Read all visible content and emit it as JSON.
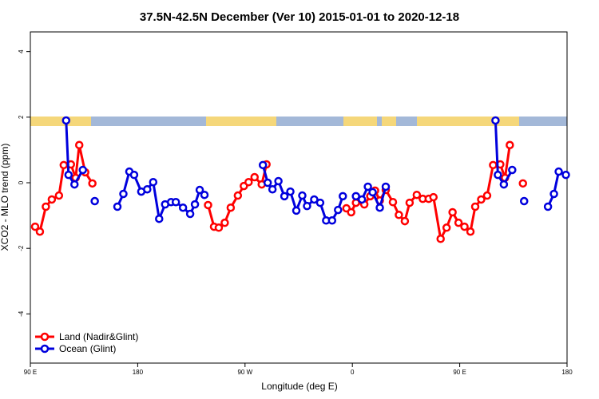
{
  "chart_data": {
    "type": "line",
    "title": "37.5N-42.5N December (Ver 10)   2015-01-01 to 2020-12-18",
    "xlabel": "Longitude (deg E)",
    "ylabel": "XCO2 - MLO trend (ppm)",
    "xlim": [
      90,
      540
    ],
    "ylim": [
      -5.5,
      4.6
    ],
    "xticks": [
      {
        "value": 90,
        "label": "90 E"
      },
      180,
      {
        "value": 270,
        "label": "90 W"
      },
      {
        "value": 360,
        "label": "0"
      },
      {
        "value": 450,
        "label": "90 E"
      },
      {
        "value": 540,
        "label": "180"
      }
    ],
    "yticks": [
      -4,
      -2,
      0,
      2,
      4
    ],
    "legend": "bottom-left",
    "series": [
      {
        "name": "Land (Nadir&Glint)",
        "color": "#ff0000",
        "x": [
          94,
          98,
          103,
          108,
          114,
          118,
          124,
          128,
          131,
          136,
          142,
          null,
          239,
          244,
          248,
          253,
          258,
          264,
          269,
          273,
          278,
          284,
          288,
          null,
          355,
          359,
          363,
          370,
          375,
          379,
          383,
          388,
          394,
          399,
          404,
          408,
          414,
          419,
          424,
          428,
          434,
          439,
          444,
          449,
          454,
          459,
          463,
          468,
          473,
          478,
          484,
          488,
          492,
          null,
          503
        ],
        "values": [
          -1.34,
          -1.49,
          -0.73,
          -0.51,
          -0.39,
          0.54,
          0.56,
          0.15,
          1.15,
          0.32,
          -0.02,
          null,
          -0.68,
          -1.34,
          -1.37,
          -1.22,
          -0.76,
          -0.39,
          -0.1,
          0.02,
          0.17,
          -0.05,
          0.56,
          null,
          -0.78,
          -0.9,
          -0.61,
          -0.66,
          -0.41,
          -0.24,
          -0.54,
          -0.22,
          -0.59,
          -0.98,
          -1.17,
          -0.61,
          -0.37,
          -0.49,
          -0.49,
          -0.44,
          -1.71,
          -1.37,
          -0.9,
          -1.22,
          -1.34,
          -1.49,
          -0.73,
          -0.51,
          -0.39,
          0.54,
          0.56,
          0.15,
          1.15,
          null,
          -0.02
        ]
      },
      {
        "name": "Ocean (Glint)",
        "color": "#0000dd",
        "x": [
          120,
          122,
          127,
          134,
          null,
          144,
          null,
          163,
          168,
          173,
          177,
          183,
          188,
          193,
          198,
          203,
          208,
          212,
          218,
          224,
          228,
          232,
          236,
          null,
          285,
          289,
          293,
          298,
          303,
          308,
          313,
          318,
          322,
          328,
          333,
          338,
          343,
          348,
          352,
          null,
          363,
          368,
          373,
          377,
          383,
          388,
          null,
          480,
          482,
          487,
          494,
          null,
          504,
          null,
          524,
          529,
          533,
          539
        ],
        "values": [
          1.9,
          0.24,
          -0.05,
          0.39,
          null,
          -0.56,
          null,
          -0.73,
          -0.34,
          0.34,
          0.24,
          -0.27,
          -0.2,
          0.02,
          -1.1,
          -0.66,
          -0.59,
          -0.59,
          -0.76,
          -0.95,
          -0.66,
          -0.22,
          -0.37,
          null,
          0.54,
          0,
          -0.2,
          0.05,
          -0.41,
          -0.27,
          -0.85,
          -0.39,
          -0.71,
          -0.51,
          -0.61,
          -1.15,
          -1.15,
          -0.83,
          -0.41,
          null,
          -0.41,
          -0.51,
          -0.12,
          -0.29,
          -0.76,
          -0.12,
          null,
          1.9,
          0.24,
          -0.05,
          0.39,
          null,
          -0.56,
          null,
          -0.73,
          -0.34,
          0.34,
          0.24
        ]
      }
    ]
  }
}
